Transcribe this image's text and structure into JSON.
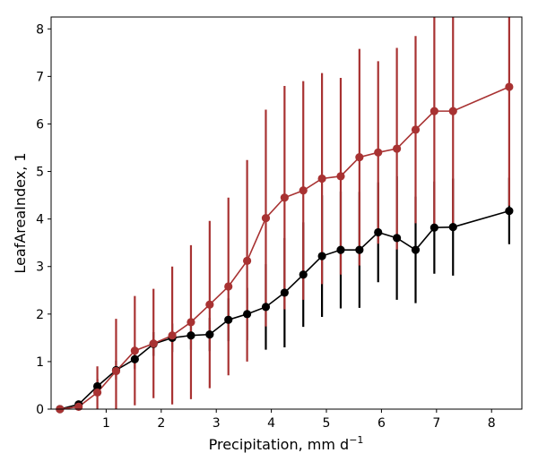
{
  "chart_data": {
    "type": "line",
    "title": "",
    "xlabel": "Precipitation,  mm d",
    "xlabel_superscript": "−1",
    "ylabel": "LeafAreaIndex,  1",
    "xlim": [
      0.0,
      8.55
    ],
    "ylim": [
      0,
      8.25
    ],
    "xticks": [
      1,
      2,
      3,
      4,
      5,
      6,
      7,
      8
    ],
    "yticks": [
      0,
      1,
      2,
      3,
      4,
      5,
      6,
      7,
      8
    ],
    "grid": false,
    "colors": {
      "black_series": "#000000",
      "red_series": "#a83232"
    },
    "series": [
      {
        "name": "black",
        "color": "#000000",
        "x": [
          0.16,
          0.5,
          0.84,
          1.18,
          1.52,
          1.86,
          2.2,
          2.54,
          2.88,
          3.22,
          3.56,
          3.9,
          4.24,
          4.58,
          4.92,
          5.26,
          5.6,
          5.94,
          6.28,
          6.62,
          6.96,
          7.3,
          8.32
        ],
        "y": [
          0.0,
          0.1,
          0.48,
          0.82,
          1.05,
          1.37,
          1.5,
          1.55,
          1.57,
          1.88,
          2.0,
          2.15,
          2.45,
          2.83,
          3.22,
          3.35,
          3.35,
          3.72,
          3.6,
          3.35,
          3.82,
          3.83,
          4.17
        ],
        "err": [
          0.03,
          0.08,
          0.15,
          0.2,
          0.2,
          0.25,
          0.3,
          0.3,
          0.35,
          0.45,
          0.55,
          0.9,
          1.15,
          1.1,
          1.28,
          1.23,
          1.22,
          1.05,
          1.3,
          1.12,
          0.97,
          1.02,
          0.7
        ]
      },
      {
        "name": "red",
        "color": "#a83232",
        "x": [
          0.16,
          0.5,
          0.84,
          1.18,
          1.52,
          1.86,
          2.2,
          2.54,
          2.88,
          3.22,
          3.56,
          3.9,
          4.24,
          4.58,
          4.92,
          5.26,
          5.6,
          5.94,
          6.28,
          6.62,
          6.96,
          7.3,
          8.32
        ],
        "y": [
          0.0,
          0.05,
          0.35,
          0.8,
          1.23,
          1.38,
          1.55,
          1.83,
          2.2,
          2.58,
          3.12,
          4.02,
          4.45,
          4.6,
          4.85,
          4.9,
          5.3,
          5.4,
          5.48,
          5.88,
          6.27,
          6.27,
          6.78
        ],
        "err": [
          0.02,
          0.05,
          0.55,
          1.1,
          1.15,
          1.15,
          1.45,
          1.62,
          1.76,
          1.87,
          2.12,
          2.28,
          2.35,
          2.3,
          2.22,
          2.07,
          2.28,
          1.92,
          2.12,
          1.97,
          2.5,
          2.5,
          2.5
        ]
      }
    ]
  }
}
